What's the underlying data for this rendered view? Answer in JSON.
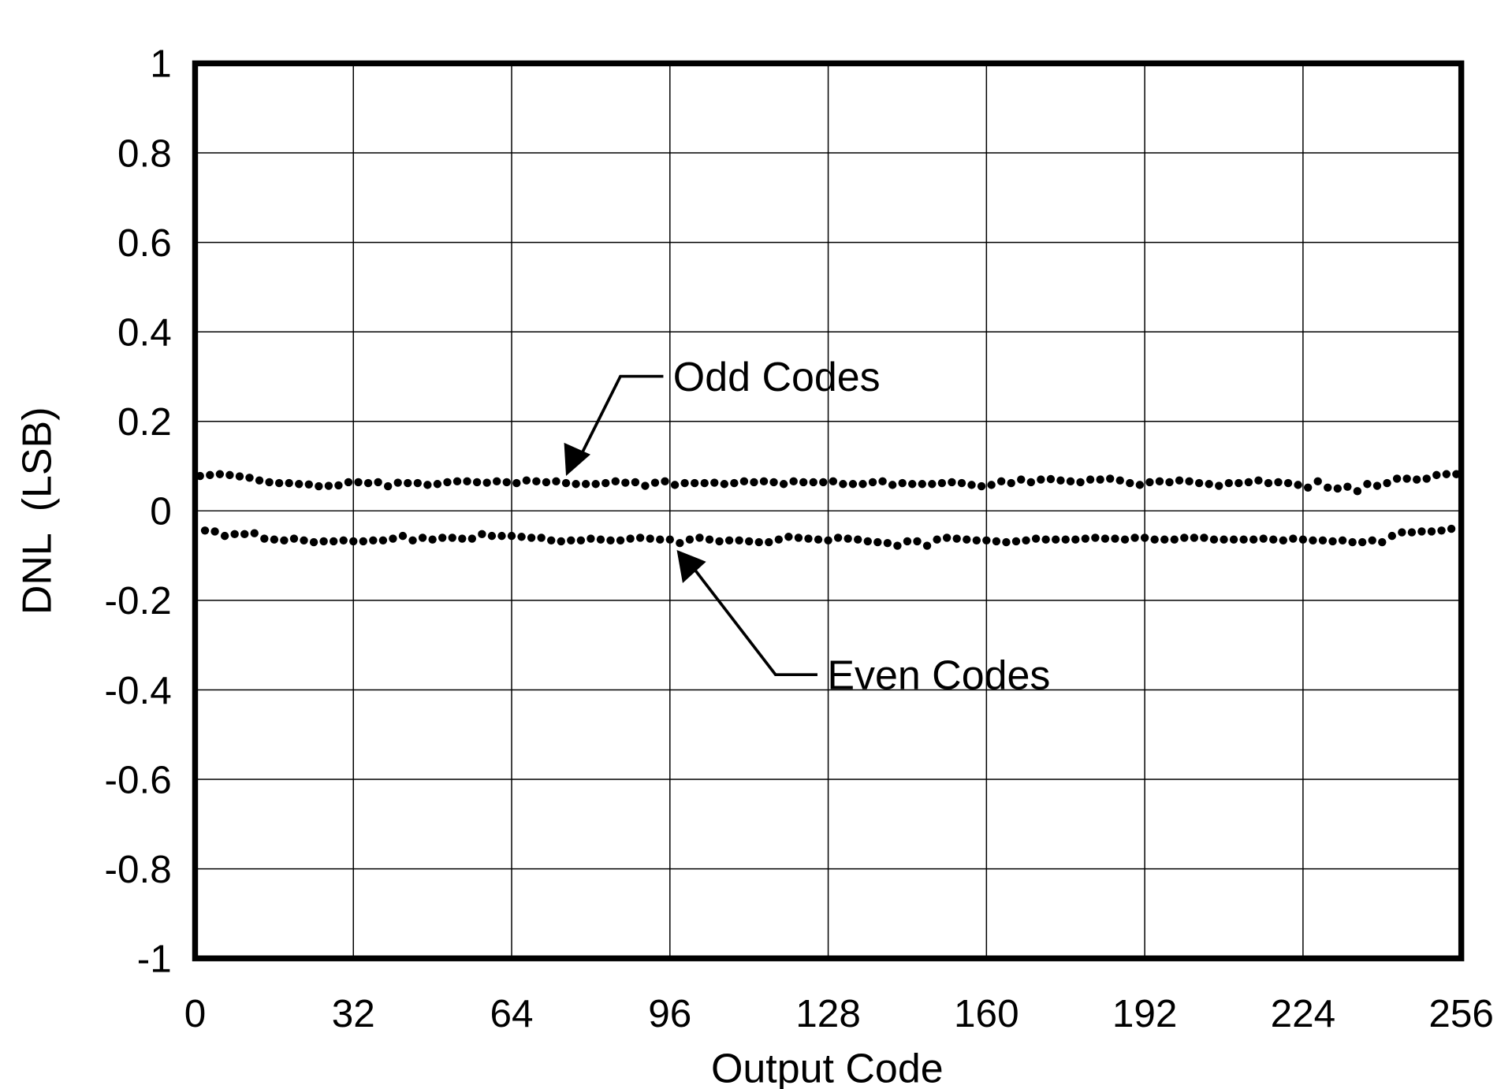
{
  "chart_data": {
    "type": "scatter",
    "title": "",
    "xlabel": "Output Code",
    "ylabel": "DNL  (LSB)",
    "xlim": [
      0,
      256
    ],
    "ylim": [
      -1,
      1
    ],
    "grid": true,
    "x_ticks": [
      0,
      32,
      64,
      96,
      128,
      160,
      192,
      224,
      256
    ],
    "y_ticks": [
      1,
      0.8,
      0.6,
      0.4,
      0.2,
      0,
      -0.2,
      -0.4,
      -0.6,
      -0.8,
      -1
    ],
    "x_tick_labels": [
      "0",
      "32",
      "64",
      "96",
      "128",
      "160",
      "192",
      "224",
      "256"
    ],
    "y_tick_labels": [
      "1",
      "0.8",
      "0.6",
      "0.4",
      "0.2",
      "0",
      "-0.2",
      "-0.4",
      "-0.6",
      "-0.8",
      "-1"
    ],
    "annotations": [
      {
        "text": "Odd Codes",
        "target_x": 75,
        "target_y": 0.065
      },
      {
        "text": "Even Codes",
        "target_x": 97,
        "target_y": -0.07
      }
    ],
    "series": [
      {
        "name": "Odd Codes",
        "x": [
          1,
          3,
          5,
          7,
          9,
          11,
          13,
          15,
          17,
          19,
          21,
          23,
          25,
          27,
          29,
          31,
          33,
          35,
          37,
          39,
          41,
          43,
          45,
          47,
          49,
          51,
          53,
          55,
          57,
          59,
          61,
          63,
          65,
          67,
          69,
          71,
          73,
          75,
          77,
          79,
          81,
          83,
          85,
          87,
          89,
          91,
          93,
          95,
          97,
          99,
          101,
          103,
          105,
          107,
          109,
          111,
          113,
          115,
          117,
          119,
          121,
          123,
          125,
          127,
          129,
          131,
          133,
          135,
          137,
          139,
          141,
          143,
          145,
          147,
          149,
          151,
          153,
          155,
          157,
          159,
          161,
          163,
          165,
          167,
          169,
          171,
          173,
          175,
          177,
          179,
          181,
          183,
          185,
          187,
          189,
          191,
          193,
          195,
          197,
          199,
          201,
          203,
          205,
          207,
          209,
          211,
          213,
          215,
          217,
          219,
          221,
          223,
          225,
          227,
          229,
          231,
          233,
          235,
          237,
          239,
          241,
          243,
          245,
          247,
          249,
          251,
          253,
          255
        ],
        "values": [
          0.078,
          0.08,
          0.082,
          0.08,
          0.077,
          0.074,
          0.068,
          0.064,
          0.062,
          0.062,
          0.06,
          0.059,
          0.055,
          0.056,
          0.057,
          0.064,
          0.064,
          0.062,
          0.064,
          0.055,
          0.063,
          0.062,
          0.062,
          0.058,
          0.06,
          0.064,
          0.066,
          0.066,
          0.064,
          0.063,
          0.066,
          0.064,
          0.062,
          0.068,
          0.066,
          0.064,
          0.066,
          0.062,
          0.06,
          0.06,
          0.06,
          0.062,
          0.066,
          0.063,
          0.064,
          0.056,
          0.063,
          0.066,
          0.058,
          0.062,
          0.062,
          0.062,
          0.063,
          0.06,
          0.062,
          0.066,
          0.064,
          0.066,
          0.064,
          0.06,
          0.066,
          0.064,
          0.064,
          0.064,
          0.066,
          0.06,
          0.06,
          0.06,
          0.064,
          0.066,
          0.058,
          0.062,
          0.06,
          0.06,
          0.06,
          0.062,
          0.064,
          0.062,
          0.058,
          0.055,
          0.058,
          0.066,
          0.062,
          0.07,
          0.064,
          0.07,
          0.071,
          0.068,
          0.066,
          0.064,
          0.07,
          0.07,
          0.072,
          0.068,
          0.062,
          0.058,
          0.064,
          0.066,
          0.064,
          0.068,
          0.066,
          0.062,
          0.06,
          0.056,
          0.062,
          0.062,
          0.064,
          0.068,
          0.062,
          0.064,
          0.062,
          0.058,
          0.052,
          0.066,
          0.052,
          0.05,
          0.054,
          0.044,
          0.06,
          0.056,
          0.062,
          0.072,
          0.072,
          0.07,
          0.072,
          0.08,
          0.082,
          0.082
        ]
      },
      {
        "name": "Even Codes",
        "x": [
          2,
          4,
          6,
          8,
          10,
          12,
          14,
          16,
          18,
          20,
          22,
          24,
          26,
          28,
          30,
          32,
          34,
          36,
          38,
          40,
          42,
          44,
          46,
          48,
          50,
          52,
          54,
          56,
          58,
          60,
          62,
          64,
          66,
          68,
          70,
          72,
          74,
          76,
          78,
          80,
          82,
          84,
          86,
          88,
          90,
          92,
          94,
          96,
          98,
          100,
          102,
          104,
          106,
          108,
          110,
          112,
          114,
          116,
          118,
          120,
          122,
          124,
          126,
          128,
          130,
          132,
          134,
          136,
          138,
          140,
          142,
          144,
          146,
          148,
          150,
          152,
          154,
          156,
          158,
          160,
          162,
          164,
          166,
          168,
          170,
          172,
          174,
          176,
          178,
          180,
          182,
          184,
          186,
          188,
          190,
          192,
          194,
          196,
          198,
          200,
          202,
          204,
          206,
          208,
          210,
          212,
          214,
          216,
          218,
          220,
          222,
          224,
          226,
          228,
          230,
          232,
          234,
          236,
          238,
          240,
          242,
          244,
          246,
          248,
          250,
          252,
          254
        ],
        "values": [
          -0.044,
          -0.046,
          -0.056,
          -0.052,
          -0.052,
          -0.05,
          -0.062,
          -0.064,
          -0.066,
          -0.062,
          -0.066,
          -0.07,
          -0.068,
          -0.068,
          -0.066,
          -0.068,
          -0.068,
          -0.066,
          -0.066,
          -0.062,
          -0.056,
          -0.066,
          -0.06,
          -0.064,
          -0.06,
          -0.06,
          -0.062,
          -0.062,
          -0.052,
          -0.056,
          -0.056,
          -0.056,
          -0.058,
          -0.06,
          -0.06,
          -0.066,
          -0.068,
          -0.066,
          -0.066,
          -0.062,
          -0.064,
          -0.066,
          -0.066,
          -0.062,
          -0.06,
          -0.062,
          -0.064,
          -0.064,
          -0.072,
          -0.064,
          -0.06,
          -0.064,
          -0.068,
          -0.066,
          -0.066,
          -0.068,
          -0.07,
          -0.07,
          -0.064,
          -0.058,
          -0.06,
          -0.062,
          -0.064,
          -0.066,
          -0.06,
          -0.062,
          -0.064,
          -0.068,
          -0.07,
          -0.072,
          -0.078,
          -0.068,
          -0.068,
          -0.078,
          -0.064,
          -0.06,
          -0.062,
          -0.064,
          -0.066,
          -0.066,
          -0.068,
          -0.07,
          -0.068,
          -0.066,
          -0.062,
          -0.064,
          -0.064,
          -0.064,
          -0.064,
          -0.062,
          -0.06,
          -0.062,
          -0.062,
          -0.064,
          -0.06,
          -0.06,
          -0.064,
          -0.064,
          -0.064,
          -0.06,
          -0.06,
          -0.06,
          -0.064,
          -0.064,
          -0.064,
          -0.064,
          -0.064,
          -0.062,
          -0.064,
          -0.066,
          -0.062,
          -0.064,
          -0.066,
          -0.066,
          -0.068,
          -0.066,
          -0.07,
          -0.07,
          -0.066,
          -0.07,
          -0.056,
          -0.048,
          -0.048,
          -0.046,
          -0.046,
          -0.044,
          -0.04
        ]
      }
    ]
  }
}
